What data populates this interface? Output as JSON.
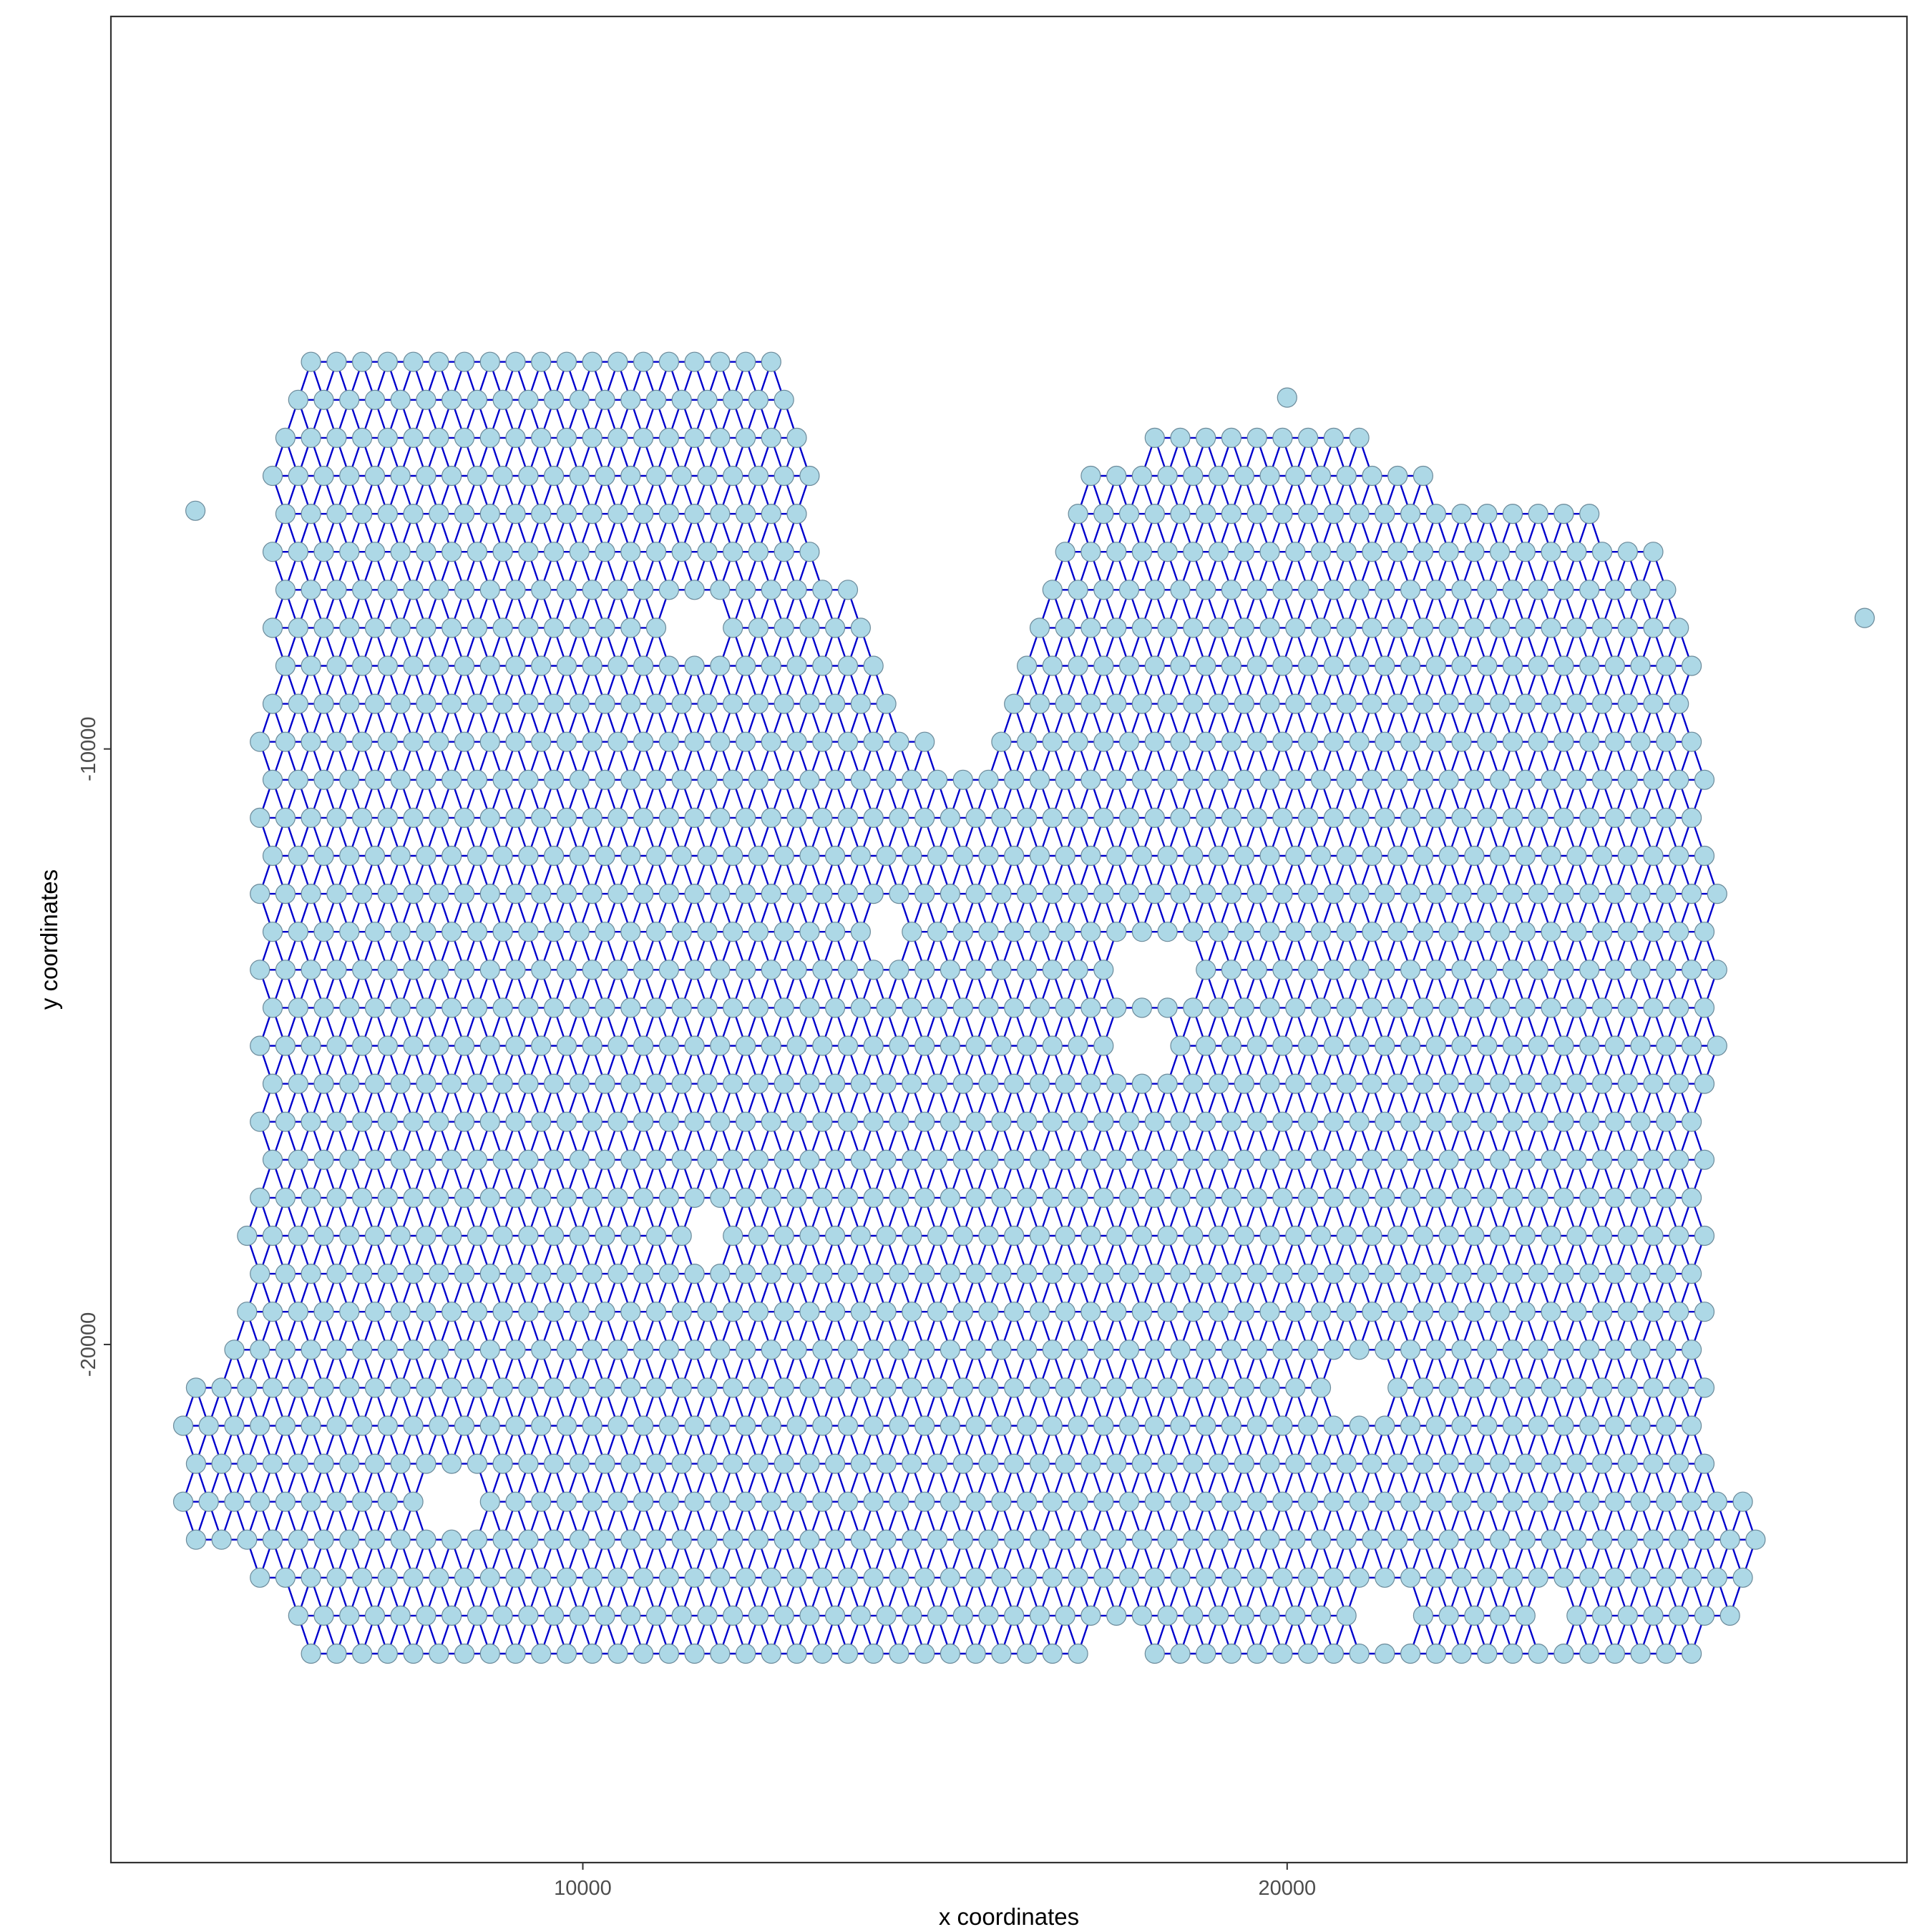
{
  "chart_data": {
    "type": "scatter",
    "subtype": "spatial spot network (Delaunay neighbours on hex lattice)",
    "xlabel": "x coordinates",
    "ylabel": "y coordinates",
    "xlim": [
      3300,
      28800
    ],
    "ylim": [
      -28700,
      2300
    ],
    "x_ticks": [
      10000,
      20000
    ],
    "y_ticks": [
      -10000,
      -20000
    ],
    "x_tick_labels": [
      "10000",
      "20000"
    ],
    "y_tick_labels": [
      "-10000",
      "-20000"
    ],
    "grid": false,
    "legend": "none",
    "lattice": {
      "x_spacing": 363,
      "y_spacing": 638,
      "row_y_start": -3500,
      "row_y_end": -25600,
      "description": "hexagonal grid of spots, each connected to its 6 nearest neighbours"
    },
    "tissue_outline": [
      [
        6400,
        -2600
      ],
      [
        7800,
        -2600
      ],
      [
        8300,
        -2300
      ],
      [
        8900,
        -2600
      ],
      [
        9700,
        -2900
      ],
      [
        10800,
        -2900
      ],
      [
        12800,
        -3500
      ],
      [
        13300,
        -5600
      ],
      [
        13500,
        -7000
      ],
      [
        13900,
        -7100
      ],
      [
        14400,
        -9200
      ],
      [
        15100,
        -10100
      ],
      [
        15600,
        -10100
      ],
      [
        16100,
        -9200
      ],
      [
        16600,
        -6900
      ],
      [
        17300,
        -5200
      ],
      [
        18400,
        -4500
      ],
      [
        20500,
        -4500
      ],
      [
        21600,
        -5000
      ],
      [
        22600,
        -5600
      ],
      [
        23900,
        -5900
      ],
      [
        25300,
        -6200
      ],
      [
        25600,
        -7000
      ],
      [
        25900,
        -10000
      ],
      [
        26200,
        -12500
      ],
      [
        26100,
        -16000
      ],
      [
        25900,
        -17200
      ],
      [
        26000,
        -19500
      ],
      [
        25900,
        -21700
      ],
      [
        26700,
        -22500
      ],
      [
        26700,
        -23900
      ],
      [
        25900,
        -25600
      ],
      [
        6300,
        -25600
      ],
      [
        5500,
        -24400
      ],
      [
        5000,
        -23800
      ],
      [
        4300,
        -23200
      ],
      [
        4300,
        -20900
      ],
      [
        5100,
        -19900
      ],
      [
        5300,
        -16000
      ],
      [
        5300,
        -11500
      ],
      [
        5300,
        -10100
      ],
      [
        5500,
        -9000
      ],
      [
        5500,
        -6500
      ],
      [
        5500,
        -4600
      ]
    ],
    "holes": [
      [
        11700,
        -8100
      ],
      [
        14300,
        -12900
      ],
      [
        17900,
        -13800
      ],
      [
        17900,
        -14900
      ],
      [
        18400,
        -13600
      ],
      [
        11700,
        -18000
      ],
      [
        8100,
        -22500
      ],
      [
        20900,
        -20800
      ],
      [
        21600,
        -24300
      ],
      [
        21300,
        -24700
      ],
      [
        17600,
        -25100
      ],
      [
        23700,
        -24300
      ]
    ],
    "outliers": [
      [
        4500,
        -6000
      ],
      [
        28200,
        -7800
      ],
      [
        20000,
        -4100
      ]
    ],
    "colors": {
      "spot_fill": "#add8e6",
      "spot_stroke": "#6b8a9a",
      "edge": "#0000cd",
      "panel_border": "#333333",
      "background": "#ffffff"
    }
  }
}
